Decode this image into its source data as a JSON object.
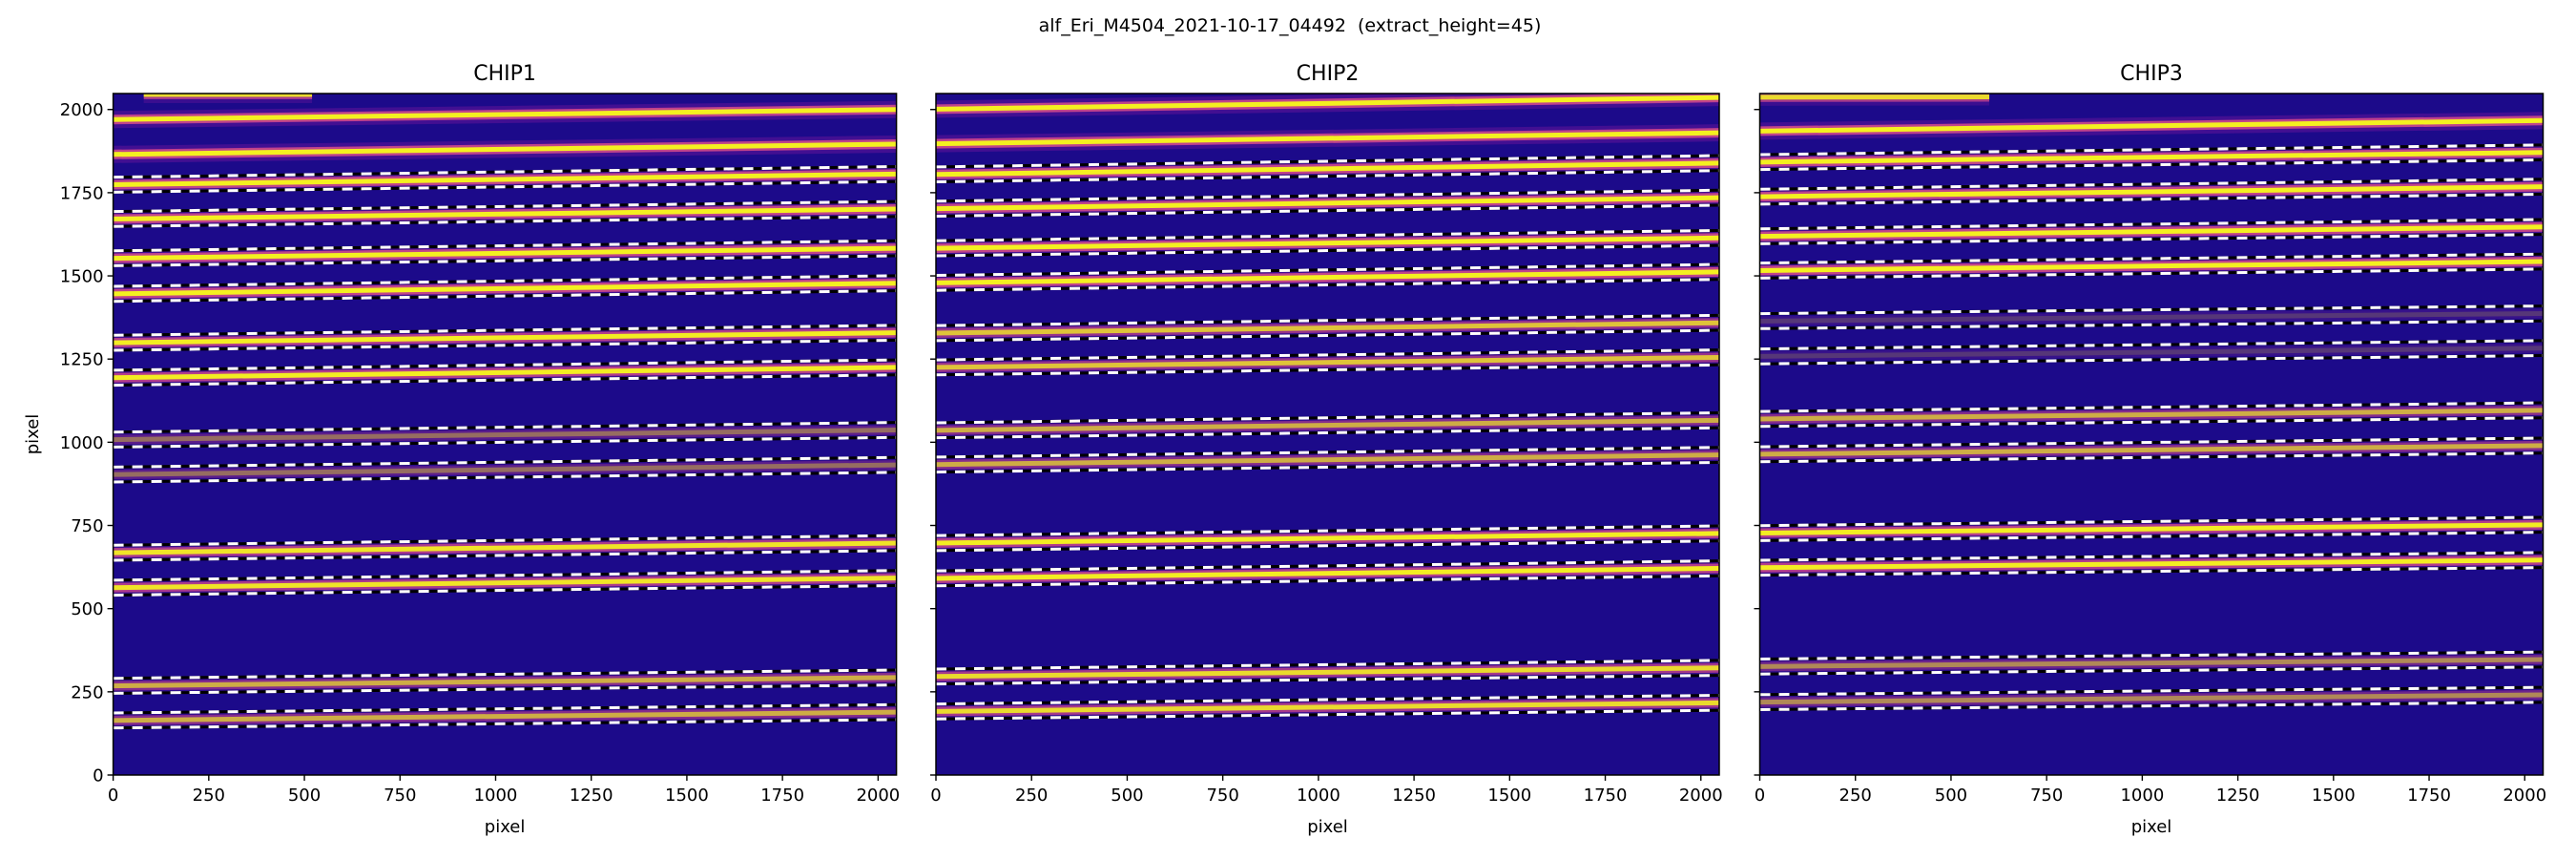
{
  "chart_data": {
    "type": "heatmap",
    "title": "alf_Eri_M4504_2021-10-17_04492  (extract_height=45)",
    "xlabel": "pixel",
    "ylabel": "pixel",
    "xlim": [
      0,
      2048
    ],
    "ylim": [
      0,
      2048
    ],
    "xticks": [
      "0",
      "250",
      "500",
      "750",
      "1000",
      "1250",
      "1500",
      "1750",
      "2000"
    ],
    "yticks": [
      "0",
      "250",
      "500",
      "750",
      "1000",
      "1250",
      "1500",
      "1750",
      "2000"
    ],
    "extract_height": 45,
    "colormap": {
      "background": "#1c0a8a",
      "halo": "#8a1aa0",
      "mid": "#e0508a",
      "peak": "#f4f020"
    },
    "grid": false,
    "panels": [
      {
        "title": "CHIP1",
        "show_ytick_labels": true,
        "traces": [
          {
            "y_start": 2045,
            "y_end": 2045,
            "x_range": [
              80,
              520
            ],
            "extracted": false,
            "intensity": 0.8
          },
          {
            "y_start": 1970,
            "y_end": 2000,
            "extracted": false,
            "intensity": 1
          },
          {
            "y_start": 1865,
            "y_end": 1896,
            "extracted": false,
            "intensity": 1
          },
          {
            "y_start": 1774,
            "y_end": 1806,
            "extracted": true,
            "intensity": 1
          },
          {
            "y_start": 1671,
            "y_end": 1701,
            "extracted": true,
            "intensity": 1
          },
          {
            "y_start": 1553,
            "y_end": 1583,
            "extracted": true,
            "intensity": 1
          },
          {
            "y_start": 1446,
            "y_end": 1478,
            "extracted": true,
            "intensity": 1
          },
          {
            "y_start": 1299,
            "y_end": 1329,
            "extracted": true,
            "intensity": 0.9
          },
          {
            "y_start": 1194,
            "y_end": 1225,
            "extracted": true,
            "intensity": 0.9
          },
          {
            "y_start": 1008,
            "y_end": 1037,
            "extracted": true,
            "intensity": 0.35
          },
          {
            "y_start": 903,
            "y_end": 932,
            "extracted": true,
            "intensity": 0.35
          },
          {
            "y_start": 668,
            "y_end": 697,
            "extracted": true,
            "intensity": 0.85
          },
          {
            "y_start": 563,
            "y_end": 592,
            "extracted": true,
            "intensity": 0.85
          },
          {
            "y_start": 268,
            "y_end": 293,
            "extracted": true,
            "intensity": 0.6
          },
          {
            "y_start": 164,
            "y_end": 189,
            "extracted": true,
            "intensity": 0.6
          }
        ]
      },
      {
        "title": "CHIP2",
        "show_ytick_labels": false,
        "traces": [
          {
            "y_start": 2001,
            "y_end": 2036,
            "extracted": false,
            "intensity": 1
          },
          {
            "y_start": 1897,
            "y_end": 1930,
            "extracted": false,
            "intensity": 1
          },
          {
            "y_start": 1805,
            "y_end": 1839,
            "extracted": true,
            "intensity": 1
          },
          {
            "y_start": 1702,
            "y_end": 1735,
            "extracted": true,
            "intensity": 1
          },
          {
            "y_start": 1583,
            "y_end": 1614,
            "extracted": true,
            "intensity": 1
          },
          {
            "y_start": 1479,
            "y_end": 1512,
            "extracted": true,
            "intensity": 1
          },
          {
            "y_start": 1328,
            "y_end": 1359,
            "extracted": true,
            "intensity": 0.7
          },
          {
            "y_start": 1225,
            "y_end": 1255,
            "extracted": true,
            "intensity": 0.7
          },
          {
            "y_start": 1036,
            "y_end": 1066,
            "extracted": true,
            "intensity": 0.6
          },
          {
            "y_start": 933,
            "y_end": 962,
            "extracted": true,
            "intensity": 0.6
          },
          {
            "y_start": 697,
            "y_end": 726,
            "extracted": true,
            "intensity": 0.9
          },
          {
            "y_start": 591,
            "y_end": 621,
            "extracted": true,
            "intensity": 0.9
          },
          {
            "y_start": 296,
            "y_end": 322,
            "extracted": true,
            "intensity": 0.8
          },
          {
            "y_start": 191,
            "y_end": 217,
            "extracted": true,
            "intensity": 0.8
          }
        ]
      },
      {
        "title": "CHIP3",
        "show_ytick_labels": false,
        "traces": [
          {
            "y_start": 2037,
            "y_end": 2040,
            "x_range": [
              0,
              600
            ],
            "extracted": false,
            "intensity": 0.8
          },
          {
            "y_start": 1935,
            "y_end": 1967,
            "extracted": false,
            "intensity": 1
          },
          {
            "y_start": 1842,
            "y_end": 1871,
            "extracted": true,
            "intensity": 1
          },
          {
            "y_start": 1738,
            "y_end": 1768,
            "extracted": true,
            "intensity": 1
          },
          {
            "y_start": 1619,
            "y_end": 1647,
            "extracted": true,
            "intensity": 1
          },
          {
            "y_start": 1516,
            "y_end": 1543,
            "extracted": true,
            "intensity": 1
          },
          {
            "y_start": 1364,
            "y_end": 1387,
            "extracted": true,
            "intensity": 0.15
          },
          {
            "y_start": 1258,
            "y_end": 1283,
            "extracted": true,
            "intensity": 0.15
          },
          {
            "y_start": 1070,
            "y_end": 1096,
            "extracted": true,
            "intensity": 0.6
          },
          {
            "y_start": 964,
            "y_end": 990,
            "extracted": true,
            "intensity": 0.6
          },
          {
            "y_start": 727,
            "y_end": 752,
            "extracted": true,
            "intensity": 0.9
          },
          {
            "y_start": 623,
            "y_end": 646,
            "extracted": true,
            "intensity": 0.9
          },
          {
            "y_start": 326,
            "y_end": 347,
            "extracted": true,
            "intensity": 0.45
          },
          {
            "y_start": 219,
            "y_end": 241,
            "extracted": true,
            "intensity": 0.45
          }
        ]
      }
    ]
  }
}
